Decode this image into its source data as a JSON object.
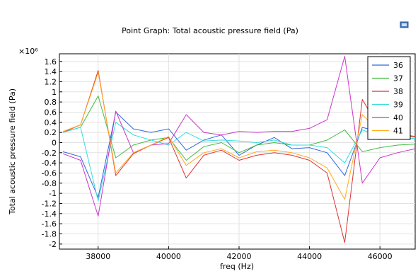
{
  "chart_data": {
    "type": "line",
    "title": "Point Graph: Total acoustic pressure field (Pa)",
    "xlabel": "freq (Hz)",
    "ylabel": "Total acoustic pressure field (Pa)",
    "y_multiplier_label": "×10⁶",
    "xlim": [
      36900,
      47000
    ],
    "ylim": [
      -2.1,
      1.75
    ],
    "x_ticks": [
      38000,
      40000,
      42000,
      44000,
      46000
    ],
    "x_tick_labels": [
      "38000",
      "40000",
      "42000",
      "44000",
      "46000"
    ],
    "y_ticks": [
      1.6,
      1.4,
      1.2,
      1,
      0.8,
      0.6,
      0.4,
      0.2,
      0,
      -0.2,
      -0.4,
      -0.6,
      -0.8,
      -1,
      -1.2,
      -1.4,
      -1.6,
      -1.8,
      -2
    ],
    "y_tick_labels": [
      "1.6",
      "1.4",
      "1.2",
      "1",
      "0.8",
      "0.6",
      "0.4",
      "0.2",
      "0",
      "-0.2",
      "-0.4",
      "-0.6",
      "-0.8",
      "-1",
      "-1.2",
      "-1.4",
      "-1.6",
      "-1.8",
      "-2"
    ],
    "grid": true,
    "legend_position": "top-right",
    "x": [
      37000,
      37500,
      38000,
      38500,
      39000,
      39500,
      40000,
      40500,
      41000,
      41500,
      42000,
      42500,
      43000,
      43500,
      44000,
      44500,
      45000,
      45500,
      46000,
      46500,
      47000
    ],
    "series": [
      {
        "name": "36",
        "color": "#3366dd",
        "values": [
          -0.18,
          -0.28,
          -1.08,
          0.6,
          0.27,
          0.2,
          0.27,
          -0.15,
          0.05,
          0.15,
          -0.25,
          -0.05,
          0.1,
          -0.12,
          -0.1,
          -0.2,
          -0.65,
          0.3,
          0.2,
          0.15,
          0.12
        ]
      },
      {
        "name": "37",
        "color": "#44bb44",
        "values": [
          0.2,
          0.3,
          0.92,
          -0.3,
          -0.05,
          0.05,
          0.1,
          -0.35,
          -0.08,
          0.0,
          -0.2,
          -0.05,
          0.0,
          -0.05,
          -0.05,
          0.05,
          0.25,
          -0.18,
          -0.1,
          -0.05,
          -0.03
        ]
      },
      {
        "name": "38",
        "color": "#dd3333",
        "values": [
          0.2,
          0.35,
          1.42,
          -0.65,
          -0.22,
          -0.05,
          0.1,
          -0.7,
          -0.25,
          -0.15,
          -0.35,
          -0.25,
          -0.2,
          -0.25,
          -0.35,
          -0.6,
          -1.97,
          0.85,
          0.25,
          0.18,
          0.12
        ]
      },
      {
        "name": "39",
        "color": "#33dddd",
        "values": [
          0.2,
          0.3,
          -1.15,
          0.4,
          0.15,
          0.05,
          -0.05,
          0.2,
          0.03,
          0.05,
          0.03,
          0.0,
          0.05,
          -0.05,
          -0.05,
          -0.1,
          -0.4,
          0.25,
          0.12,
          0.1,
          0.08
        ]
      },
      {
        "name": "40",
        "color": "#cc33cc",
        "values": [
          -0.22,
          -0.35,
          -1.45,
          0.62,
          -0.2,
          -0.05,
          -0.02,
          0.55,
          0.2,
          0.15,
          0.22,
          0.2,
          0.22,
          0.22,
          0.28,
          0.45,
          1.7,
          -0.8,
          -0.3,
          -0.2,
          -0.12
        ]
      },
      {
        "name": "41",
        "color": "#ffaa22",
        "values": [
          0.22,
          0.35,
          1.38,
          -0.6,
          -0.2,
          -0.05,
          0.12,
          -0.45,
          -0.2,
          -0.12,
          -0.3,
          -0.18,
          -0.15,
          -0.2,
          -0.3,
          -0.5,
          -1.12,
          0.55,
          0.2,
          0.15,
          0.1
        ]
      }
    ]
  }
}
